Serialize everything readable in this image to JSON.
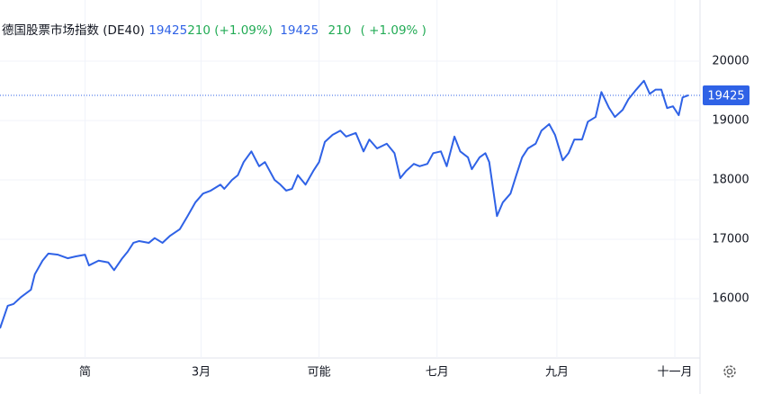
{
  "chart_data": {
    "type": "line",
    "title": "德国股票市场指数 (DE40)",
    "annotations": [
      "19425",
      "210 (+1.09%)",
      "19425",
      "210",
      "( +1.09% )"
    ],
    "x": [
      -44,
      -40,
      -37,
      -33,
      -28,
      -26,
      -22,
      -19,
      -14,
      -9,
      -5,
      0,
      2,
      7,
      12,
      15,
      19,
      22,
      25,
      28,
      33,
      36,
      40,
      44,
      49,
      53,
      57,
      61,
      65,
      70,
      72,
      76,
      79,
      82,
      86,
      90,
      93,
      98,
      101,
      104,
      107,
      110,
      114,
      118,
      121,
      124,
      128,
      132,
      135,
      140,
      144,
      147,
      151,
      156,
      160,
      163,
      166,
      170,
      173,
      177,
      180,
      184,
      187,
      191,
      194,
      198,
      200,
      204,
      207,
      209,
      213,
      216,
      220,
      223,
      226,
      229,
      233,
      236,
      240,
      243,
      247,
      250,
      253,
      257,
      260,
      264,
      267,
      271,
      274,
      278,
      281,
      285,
      289,
      292,
      295,
      298,
      301,
      304,
      307,
      309,
      312
    ],
    "values": [
      15500,
      15880,
      15910,
      16030,
      16150,
      16410,
      16640,
      16760,
      16740,
      16680,
      16710,
      16740,
      16560,
      16640,
      16610,
      16480,
      16670,
      16790,
      16940,
      16970,
      16940,
      17020,
      16940,
      17060,
      17170,
      17390,
      17620,
      17770,
      17820,
      17920,
      17850,
      18000,
      18080,
      18300,
      18480,
      18230,
      18300,
      18000,
      17920,
      17820,
      17850,
      18080,
      17920,
      18150,
      18300,
      18640,
      18760,
      18830,
      18730,
      18790,
      18480,
      18680,
      18530,
      18610,
      18450,
      18030,
      18150,
      18270,
      18230,
      18270,
      18450,
      18480,
      18230,
      18730,
      18480,
      18380,
      18180,
      18380,
      18450,
      18300,
      17390,
      17620,
      17770,
      18080,
      18380,
      18530,
      18610,
      18830,
      18940,
      18760,
      18330,
      18450,
      18680,
      18680,
      18980,
      19060,
      19480,
      19210,
      19060,
      19180,
      19360,
      19520,
      19670,
      19450,
      19520,
      19520,
      19210,
      19240,
      19090,
      19390,
      19425
    ],
    "color": "#2f62e6",
    "xlim": [
      -44,
      318
    ],
    "xticks": [
      {
        "value": 0,
        "label": "简"
      },
      {
        "value": 60,
        "label": "3月"
      },
      {
        "value": 121,
        "label": "可能"
      },
      {
        "value": 182,
        "label": "七月"
      },
      {
        "value": 244,
        "label": "九月"
      },
      {
        "value": 305,
        "label": "十一月"
      }
    ],
    "ylim": [
      15000,
      21000
    ],
    "yticks": [
      16000,
      17000,
      18000,
      19000,
      20000
    ],
    "grid": true
  }
}
